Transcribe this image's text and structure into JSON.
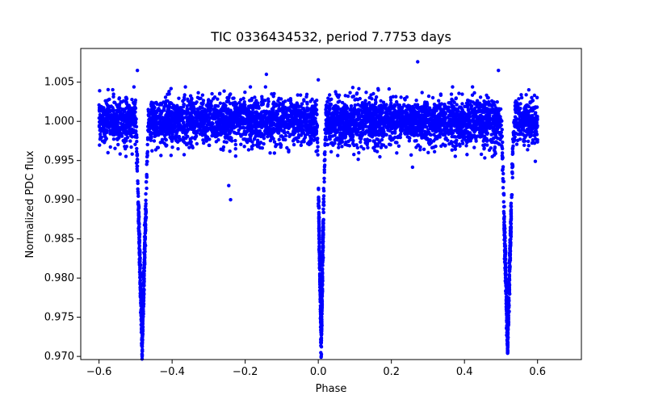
{
  "chart_data": {
    "type": "scatter",
    "title": "TIC 0336434532, period 7.7753 days",
    "xlabel": "Phase",
    "ylabel": "Normalized PDC flux",
    "xlim": [
      -0.65,
      0.72
    ],
    "ylim": [
      0.9696,
      1.0093
    ],
    "grid": false,
    "marker_color": "#0000ff",
    "x_ticks": [
      -0.6,
      -0.4,
      -0.2,
      0.0,
      0.2,
      0.4,
      0.6
    ],
    "x_tick_labels": [
      "−0.6",
      "−0.4",
      "−0.2",
      "0.0",
      "0.2",
      "0.4",
      "0.6"
    ],
    "y_ticks": [
      0.97,
      0.975,
      0.98,
      0.985,
      0.99,
      0.995,
      1.0,
      1.005
    ],
    "y_tick_labels": [
      "0.970",
      "0.975",
      "0.980",
      "0.985",
      "0.990",
      "0.995",
      "1.000",
      "1.005"
    ],
    "baseline": {
      "x_range": [
        -0.6,
        0.6
      ],
      "typical_flux_range": [
        0.9945,
        1.004
      ]
    },
    "eclipses": [
      {
        "center_phase": -0.482,
        "half_width": 0.018,
        "min_flux": 0.9713
      },
      {
        "center_phase": 0.008,
        "half_width": 0.012,
        "min_flux": 0.9717
      },
      {
        "center_phase": 0.518,
        "half_width": 0.018,
        "min_flux": 0.9713
      }
    ],
    "outlier_points": [
      {
        "x": -0.495,
        "y": 1.0065
      },
      {
        "x": -0.142,
        "y": 1.006
      },
      {
        "x": 0.272,
        "y": 1.0076
      },
      {
        "x": 0.493,
        "y": 1.0065
      },
      {
        "x": -0.24,
        "y": 0.99
      },
      {
        "x": -0.245,
        "y": 0.9918
      },
      {
        "x": 0.0,
        "y": 1.0053
      }
    ]
  }
}
